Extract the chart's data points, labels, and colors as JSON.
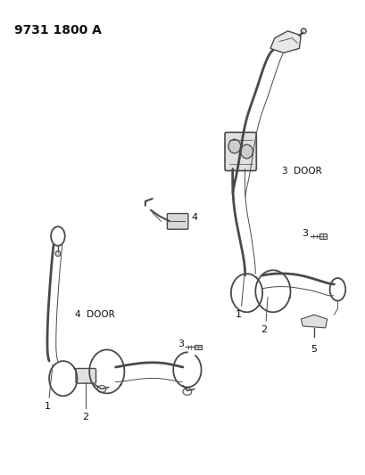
{
  "title": "9731 1800 A",
  "bg_color": "#ffffff",
  "line_color": "#4a4a4a",
  "label_color": "#111111",
  "title_fontsize": 10,
  "label_fontsize": 7.5,
  "figsize": [
    4.1,
    5.33
  ],
  "dpi": 100,
  "labels": {
    "title": "9731 1800 A",
    "three_door": "3  DOOR",
    "four_door": "4  DOOR"
  }
}
